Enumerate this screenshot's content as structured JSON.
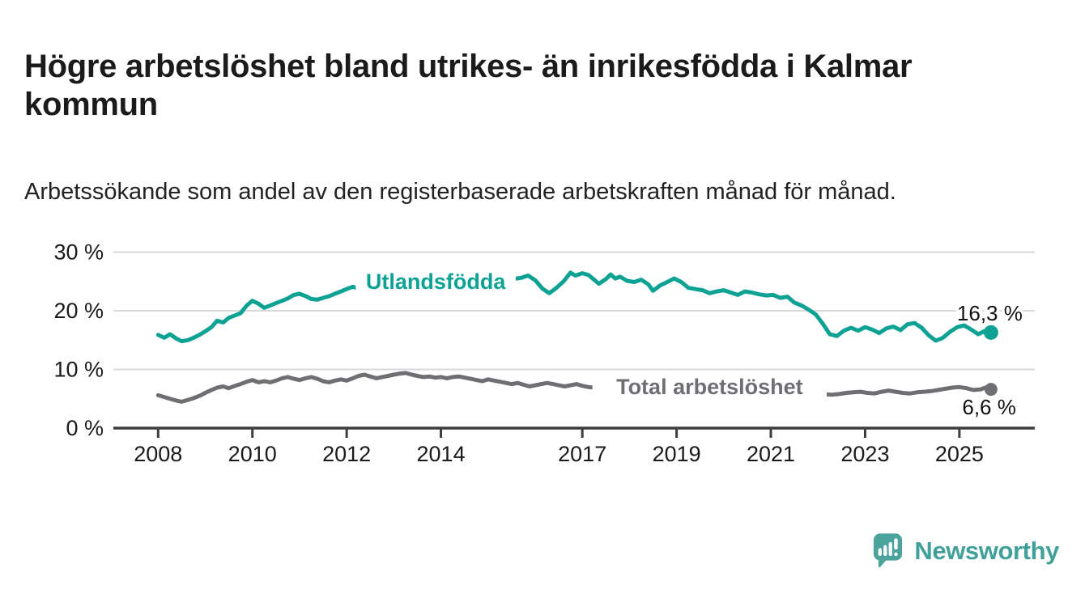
{
  "header": {
    "title": "Högre arbetslöshet bland utrikes- än inrikesfödda i Kalmar kommun",
    "subtitle": "Arbetssökande som andel av den registerbaserade arbetskraften månad för månad."
  },
  "footer": {
    "brand": "Newsworthy",
    "brand_color": "#41a09a",
    "logo_icon": "speech-bubble-bar-chart-icon"
  },
  "chart_data": {
    "type": "line",
    "title": "Högre arbetslöshet bland utrikes- än inrikesfödda i Kalmar kommun",
    "subtitle": "Arbetssökande som andel av den registerbaserade arbetskraften månad för månad.",
    "unit": "%",
    "xlim": [
      2007.05,
      2026.6
    ],
    "ylim": [
      0,
      30
    ],
    "grid": "horizontal",
    "legend_position": "inline-labels",
    "colors": {
      "grid": "#d9d9d9",
      "axis": "#3d3d3d",
      "tick_text": "#1a1a1a",
      "value_text": "#111111"
    },
    "yticks": [
      {
        "value": 0,
        "label": "0 %"
      },
      {
        "value": 10,
        "label": "10 %"
      },
      {
        "value": 20,
        "label": "20 %"
      },
      {
        "value": 30,
        "label": "30 %"
      }
    ],
    "xticks": [
      {
        "value": 2008,
        "label": "2008"
      },
      {
        "value": 2010,
        "label": "2010"
      },
      {
        "value": 2012,
        "label": "2012"
      },
      {
        "value": 2014,
        "label": "2014"
      },
      {
        "value": 2017,
        "label": "2017"
      },
      {
        "value": 2019,
        "label": "2019"
      },
      {
        "value": 2021,
        "label": "2021"
      },
      {
        "value": 2023,
        "label": "2023"
      },
      {
        "value": 2025,
        "label": "2025"
      }
    ],
    "series": [
      {
        "name": "Utlandsfödda",
        "color": "#0ea294",
        "label_pos": {
          "year": 2013.89,
          "value": 25.0
        },
        "end_label": {
          "text": "16,3 %",
          "placement": "above"
        },
        "end_value": 16.3,
        "points": [
          [
            2008.0,
            15.9
          ],
          [
            2008.13,
            15.4
          ],
          [
            2008.25,
            16.0
          ],
          [
            2008.38,
            15.3
          ],
          [
            2008.5,
            14.8
          ],
          [
            2008.63,
            15.0
          ],
          [
            2008.75,
            15.4
          ],
          [
            2008.88,
            15.9
          ],
          [
            2009.0,
            16.5
          ],
          [
            2009.13,
            17.2
          ],
          [
            2009.25,
            18.3
          ],
          [
            2009.38,
            18.0
          ],
          [
            2009.5,
            18.8
          ],
          [
            2009.63,
            19.2
          ],
          [
            2009.75,
            19.6
          ],
          [
            2009.88,
            20.9
          ],
          [
            2010.0,
            21.7
          ],
          [
            2010.13,
            21.2
          ],
          [
            2010.25,
            20.5
          ],
          [
            2010.38,
            20.9
          ],
          [
            2010.5,
            21.3
          ],
          [
            2010.63,
            21.7
          ],
          [
            2010.75,
            22.1
          ],
          [
            2010.88,
            22.7
          ],
          [
            2011.0,
            22.9
          ],
          [
            2011.13,
            22.5
          ],
          [
            2011.25,
            22.0
          ],
          [
            2011.38,
            21.9
          ],
          [
            2011.5,
            22.2
          ],
          [
            2011.63,
            22.5
          ],
          [
            2011.75,
            22.9
          ],
          [
            2011.88,
            23.3
          ],
          [
            2012.0,
            23.7
          ],
          [
            2012.13,
            24.1
          ],
          [
            2012.25,
            23.8
          ],
          [
            2012.38,
            24.0
          ],
          [
            2012.5,
            24.3
          ],
          [
            2012.63,
            24.6
          ],
          [
            2012.75,
            24.3
          ],
          [
            2012.88,
            24.5
          ],
          [
            2013.0,
            24.8
          ],
          [
            2013.25,
            25.0
          ],
          [
            2013.5,
            24.7
          ],
          [
            2013.75,
            24.9
          ],
          [
            2014.0,
            24.6
          ],
          [
            2014.25,
            24.3
          ],
          [
            2014.5,
            24.6
          ],
          [
            2014.75,
            24.9
          ],
          [
            2015.0,
            25.0
          ],
          [
            2015.25,
            25.2
          ],
          [
            2015.5,
            25.4
          ],
          [
            2015.7,
            25.6
          ],
          [
            2015.85,
            26.0
          ],
          [
            2016.0,
            25.2
          ],
          [
            2016.15,
            23.8
          ],
          [
            2016.3,
            23.0
          ],
          [
            2016.45,
            23.9
          ],
          [
            2016.6,
            25.0
          ],
          [
            2016.75,
            26.5
          ],
          [
            2016.85,
            26.0
          ],
          [
            2017.0,
            26.4
          ],
          [
            2017.13,
            26.1
          ],
          [
            2017.25,
            25.3
          ],
          [
            2017.35,
            24.6
          ],
          [
            2017.5,
            25.4
          ],
          [
            2017.6,
            26.2
          ],
          [
            2017.7,
            25.5
          ],
          [
            2017.8,
            25.8
          ],
          [
            2017.95,
            25.1
          ],
          [
            2018.1,
            24.9
          ],
          [
            2018.25,
            25.3
          ],
          [
            2018.4,
            24.5
          ],
          [
            2018.5,
            23.4
          ],
          [
            2018.65,
            24.3
          ],
          [
            2018.8,
            24.9
          ],
          [
            2018.95,
            25.5
          ],
          [
            2019.1,
            24.9
          ],
          [
            2019.25,
            23.9
          ],
          [
            2019.4,
            23.7
          ],
          [
            2019.55,
            23.5
          ],
          [
            2019.7,
            23.0
          ],
          [
            2019.85,
            23.3
          ],
          [
            2020.0,
            23.5
          ],
          [
            2020.15,
            23.1
          ],
          [
            2020.3,
            22.7
          ],
          [
            2020.45,
            23.3
          ],
          [
            2020.6,
            23.1
          ],
          [
            2020.75,
            22.8
          ],
          [
            2020.9,
            22.6
          ],
          [
            2021.05,
            22.7
          ],
          [
            2021.2,
            22.2
          ],
          [
            2021.35,
            22.4
          ],
          [
            2021.5,
            21.4
          ],
          [
            2021.65,
            20.9
          ],
          [
            2021.8,
            20.2
          ],
          [
            2021.95,
            19.4
          ],
          [
            2022.1,
            17.8
          ],
          [
            2022.25,
            16.0
          ],
          [
            2022.4,
            15.7
          ],
          [
            2022.55,
            16.6
          ],
          [
            2022.7,
            17.1
          ],
          [
            2022.85,
            16.6
          ],
          [
            2023.0,
            17.2
          ],
          [
            2023.15,
            16.8
          ],
          [
            2023.3,
            16.2
          ],
          [
            2023.45,
            17.0
          ],
          [
            2023.6,
            17.3
          ],
          [
            2023.75,
            16.7
          ],
          [
            2023.9,
            17.7
          ],
          [
            2024.05,
            17.9
          ],
          [
            2024.2,
            17.1
          ],
          [
            2024.35,
            15.8
          ],
          [
            2024.5,
            14.9
          ],
          [
            2024.65,
            15.4
          ],
          [
            2024.8,
            16.4
          ],
          [
            2024.95,
            17.2
          ],
          [
            2025.1,
            17.5
          ],
          [
            2025.25,
            16.8
          ],
          [
            2025.4,
            16.0
          ],
          [
            2025.55,
            16.6
          ],
          [
            2025.67,
            16.3
          ]
        ]
      },
      {
        "name": "Total arbetslöshet",
        "color": "#6e6e73",
        "label_pos": {
          "year": 2019.7,
          "value": 7.05
        },
        "end_label": {
          "text": "6,6 %",
          "placement": "below"
        },
        "end_value": 6.6,
        "points": [
          [
            2008.0,
            5.6
          ],
          [
            2008.13,
            5.3
          ],
          [
            2008.25,
            5.0
          ],
          [
            2008.38,
            4.7
          ],
          [
            2008.5,
            4.5
          ],
          [
            2008.63,
            4.8
          ],
          [
            2008.75,
            5.1
          ],
          [
            2008.88,
            5.5
          ],
          [
            2009.0,
            6.0
          ],
          [
            2009.13,
            6.5
          ],
          [
            2009.25,
            6.9
          ],
          [
            2009.38,
            7.1
          ],
          [
            2009.5,
            6.8
          ],
          [
            2009.63,
            7.2
          ],
          [
            2009.75,
            7.5
          ],
          [
            2009.88,
            7.9
          ],
          [
            2010.0,
            8.2
          ],
          [
            2010.13,
            7.8
          ],
          [
            2010.25,
            8.0
          ],
          [
            2010.38,
            7.8
          ],
          [
            2010.5,
            8.1
          ],
          [
            2010.63,
            8.5
          ],
          [
            2010.75,
            8.7
          ],
          [
            2010.88,
            8.4
          ],
          [
            2011.0,
            8.2
          ],
          [
            2011.13,
            8.5
          ],
          [
            2011.25,
            8.7
          ],
          [
            2011.38,
            8.4
          ],
          [
            2011.5,
            8.0
          ],
          [
            2011.63,
            7.8
          ],
          [
            2011.75,
            8.1
          ],
          [
            2011.88,
            8.3
          ],
          [
            2012.0,
            8.1
          ],
          [
            2012.13,
            8.5
          ],
          [
            2012.25,
            8.9
          ],
          [
            2012.38,
            9.1
          ],
          [
            2012.5,
            8.8
          ],
          [
            2012.63,
            8.5
          ],
          [
            2012.75,
            8.7
          ],
          [
            2012.88,
            8.9
          ],
          [
            2013.0,
            9.1
          ],
          [
            2013.13,
            9.3
          ],
          [
            2013.25,
            9.4
          ],
          [
            2013.38,
            9.1
          ],
          [
            2013.5,
            8.9
          ],
          [
            2013.63,
            8.7
          ],
          [
            2013.75,
            8.8
          ],
          [
            2013.88,
            8.6
          ],
          [
            2014.0,
            8.7
          ],
          [
            2014.13,
            8.5
          ],
          [
            2014.25,
            8.7
          ],
          [
            2014.38,
            8.8
          ],
          [
            2014.5,
            8.6
          ],
          [
            2014.63,
            8.4
          ],
          [
            2014.75,
            8.2
          ],
          [
            2014.88,
            8.0
          ],
          [
            2015.0,
            8.3
          ],
          [
            2015.13,
            8.1
          ],
          [
            2015.25,
            7.9
          ],
          [
            2015.38,
            7.7
          ],
          [
            2015.5,
            7.5
          ],
          [
            2015.63,
            7.7
          ],
          [
            2015.75,
            7.4
          ],
          [
            2015.88,
            7.1
          ],
          [
            2016.0,
            7.3
          ],
          [
            2016.13,
            7.5
          ],
          [
            2016.25,
            7.7
          ],
          [
            2016.38,
            7.5
          ],
          [
            2016.5,
            7.3
          ],
          [
            2016.63,
            7.1
          ],
          [
            2016.75,
            7.3
          ],
          [
            2016.88,
            7.5
          ],
          [
            2017.0,
            7.2
          ],
          [
            2017.13,
            7.0
          ],
          [
            2017.25,
            6.9
          ],
          [
            2017.4,
            7.0
          ],
          [
            2017.7,
            7.1
          ],
          [
            2018.0,
            6.9
          ],
          [
            2018.5,
            6.7
          ],
          [
            2019.0,
            6.8
          ],
          [
            2019.5,
            6.5
          ],
          [
            2020.0,
            6.6
          ],
          [
            2020.5,
            6.4
          ],
          [
            2021.0,
            6.2
          ],
          [
            2021.5,
            6.0
          ],
          [
            2022.0,
            5.8
          ],
          [
            2022.3,
            5.7
          ],
          [
            2022.45,
            5.8
          ],
          [
            2022.6,
            6.0
          ],
          [
            2022.75,
            6.1
          ],
          [
            2022.9,
            6.2
          ],
          [
            2023.05,
            6.0
          ],
          [
            2023.2,
            5.9
          ],
          [
            2023.35,
            6.2
          ],
          [
            2023.5,
            6.4
          ],
          [
            2023.65,
            6.2
          ],
          [
            2023.8,
            6.0
          ],
          [
            2023.95,
            5.9
          ],
          [
            2024.1,
            6.1
          ],
          [
            2024.25,
            6.2
          ],
          [
            2024.4,
            6.3
          ],
          [
            2024.55,
            6.5
          ],
          [
            2024.7,
            6.7
          ],
          [
            2024.85,
            6.9
          ],
          [
            2025.0,
            7.0
          ],
          [
            2025.15,
            6.8
          ],
          [
            2025.3,
            6.5
          ],
          [
            2025.45,
            6.6
          ],
          [
            2025.55,
            6.9
          ],
          [
            2025.67,
            6.6
          ]
        ]
      }
    ]
  }
}
